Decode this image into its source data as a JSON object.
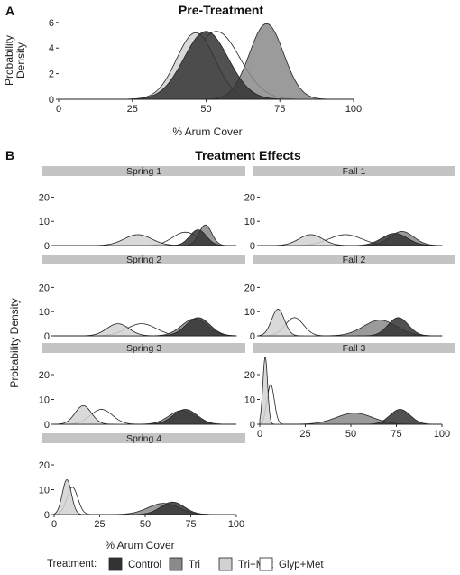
{
  "panel_a": {
    "label": "A",
    "title": "Pre-Treatment",
    "xlabel": "% Arum Cover",
    "ylabel": "Probability Density"
  },
  "panel_b": {
    "label": "B",
    "title": "Treatment Effects",
    "xlabel": "% Arum Cover",
    "ylabel": "Probability Density"
  },
  "legend": {
    "title": "Treatment:",
    "items": [
      {
        "label": "Control",
        "color": "#333333"
      },
      {
        "label": "Tri",
        "color": "#8a8a8a"
      },
      {
        "label": "Tri+Met",
        "color": "#d2d2d2"
      },
      {
        "label": "Glyp+Met",
        "color": "#ffffff"
      }
    ]
  },
  "chart_data": [
    {
      "type": "area",
      "title": "Pre-Treatment",
      "xlabel": "% Arum Cover",
      "ylabel": "Probability Density",
      "xlim": [
        0,
        100
      ],
      "ylim": [
        0,
        6.2
      ],
      "xticks": [
        0,
        25,
        50,
        75,
        100
      ],
      "yticks": [
        0,
        2,
        4,
        6
      ],
      "series": [
        {
          "name": "Control",
          "mean": 50,
          "sd": 7.5,
          "peak": 5.3
        },
        {
          "name": "Tri",
          "mean": 70.5,
          "sd": 5.8,
          "peak": 5.9
        },
        {
          "name": "Tri+Met",
          "mean": 46.5,
          "sd": 6.5,
          "peak": 5.2
        },
        {
          "name": "Glyp+Met",
          "mean": 53.5,
          "sd": 8.0,
          "peak": 5.3
        }
      ]
    },
    {
      "type": "area",
      "title": "Treatment Effects",
      "xlabel": "% Arum Cover",
      "ylabel": "Probability Density",
      "xlim": [
        0,
        100
      ],
      "ylim": [
        0,
        28
      ],
      "xticks": [
        0,
        25,
        50,
        75,
        100
      ],
      "yticks": [
        0,
        10,
        20
      ],
      "facets": [
        {
          "name": "Spring 1",
          "series": [
            {
              "name": "Control",
              "mean": 79,
              "sd": 4.5,
              "peak": 6.5
            },
            {
              "name": "Tri",
              "mean": 83,
              "sd": 3.5,
              "peak": 8.5
            },
            {
              "name": "Tri+Met",
              "mean": 46,
              "sd": 7.5,
              "peak": 4.5
            },
            {
              "name": "Glyp+Met",
              "mean": 72,
              "sd": 7.0,
              "peak": 5.5
            }
          ]
        },
        {
          "name": "Fall 1",
          "series": [
            {
              "name": "Control",
              "mean": 74,
              "sd": 7.0,
              "peak": 5.0
            },
            {
              "name": "Tri",
              "mean": 78,
              "sd": 6.5,
              "peak": 5.8
            },
            {
              "name": "Tri+Met",
              "mean": 28,
              "sd": 6.5,
              "peak": 4.5
            },
            {
              "name": "Glyp+Met",
              "mean": 47,
              "sd": 9.0,
              "peak": 4.5
            }
          ]
        },
        {
          "name": "Spring 2",
          "series": [
            {
              "name": "Control",
              "mean": 79,
              "sd": 6.5,
              "peak": 7.5
            },
            {
              "name": "Tri",
              "mean": 77,
              "sd": 7.0,
              "peak": 7.0
            },
            {
              "name": "Tri+Met",
              "mean": 35,
              "sd": 6.0,
              "peak": 5.0
            },
            {
              "name": "Glyp+Met",
              "mean": 48,
              "sd": 8.0,
              "peak": 5.0
            }
          ]
        },
        {
          "name": "Fall 2",
          "series": [
            {
              "name": "Control",
              "mean": 76,
              "sd": 5.5,
              "peak": 7.5
            },
            {
              "name": "Tri",
              "mean": 66,
              "sd": 9.0,
              "peak": 6.5
            },
            {
              "name": "Tri+Met",
              "mean": 10,
              "sd": 3.5,
              "peak": 11.0
            },
            {
              "name": "Glyp+Met",
              "mean": 19,
              "sd": 5.0,
              "peak": 7.5
            }
          ]
        },
        {
          "name": "Spring 3",
          "series": [
            {
              "name": "Control",
              "mean": 72,
              "sd": 6.5,
              "peak": 6.0
            },
            {
              "name": "Tri",
              "mean": 70,
              "sd": 7.0,
              "peak": 5.5
            },
            {
              "name": "Tri+Met",
              "mean": 16,
              "sd": 4.5,
              "peak": 7.5
            },
            {
              "name": "Glyp+Met",
              "mean": 26,
              "sd": 6.0,
              "peak": 6.0
            }
          ]
        },
        {
          "name": "Fall 3",
          "series": [
            {
              "name": "Control",
              "mean": 77,
              "sd": 5.5,
              "peak": 6.0
            },
            {
              "name": "Tri",
              "mean": 52,
              "sd": 10.0,
              "peak": 4.5
            },
            {
              "name": "Tri+Met",
              "mean": 3,
              "sd": 1.3,
              "peak": 27.0
            },
            {
              "name": "Glyp+Met",
              "mean": 6,
              "sd": 2.0,
              "peak": 16.0
            }
          ]
        },
        {
          "name": "Spring 4",
          "series": [
            {
              "name": "Control",
              "mean": 65,
              "sd": 6.5,
              "peak": 5.0
            },
            {
              "name": "Tri",
              "mean": 60,
              "sd": 8.5,
              "peak": 4.5
            },
            {
              "name": "Tri+Met",
              "mean": 7,
              "sd": 2.5,
              "peak": 14.0
            },
            {
              "name": "Glyp+Met",
              "mean": 10,
              "sd": 3.0,
              "peak": 11.0
            }
          ]
        }
      ]
    }
  ]
}
